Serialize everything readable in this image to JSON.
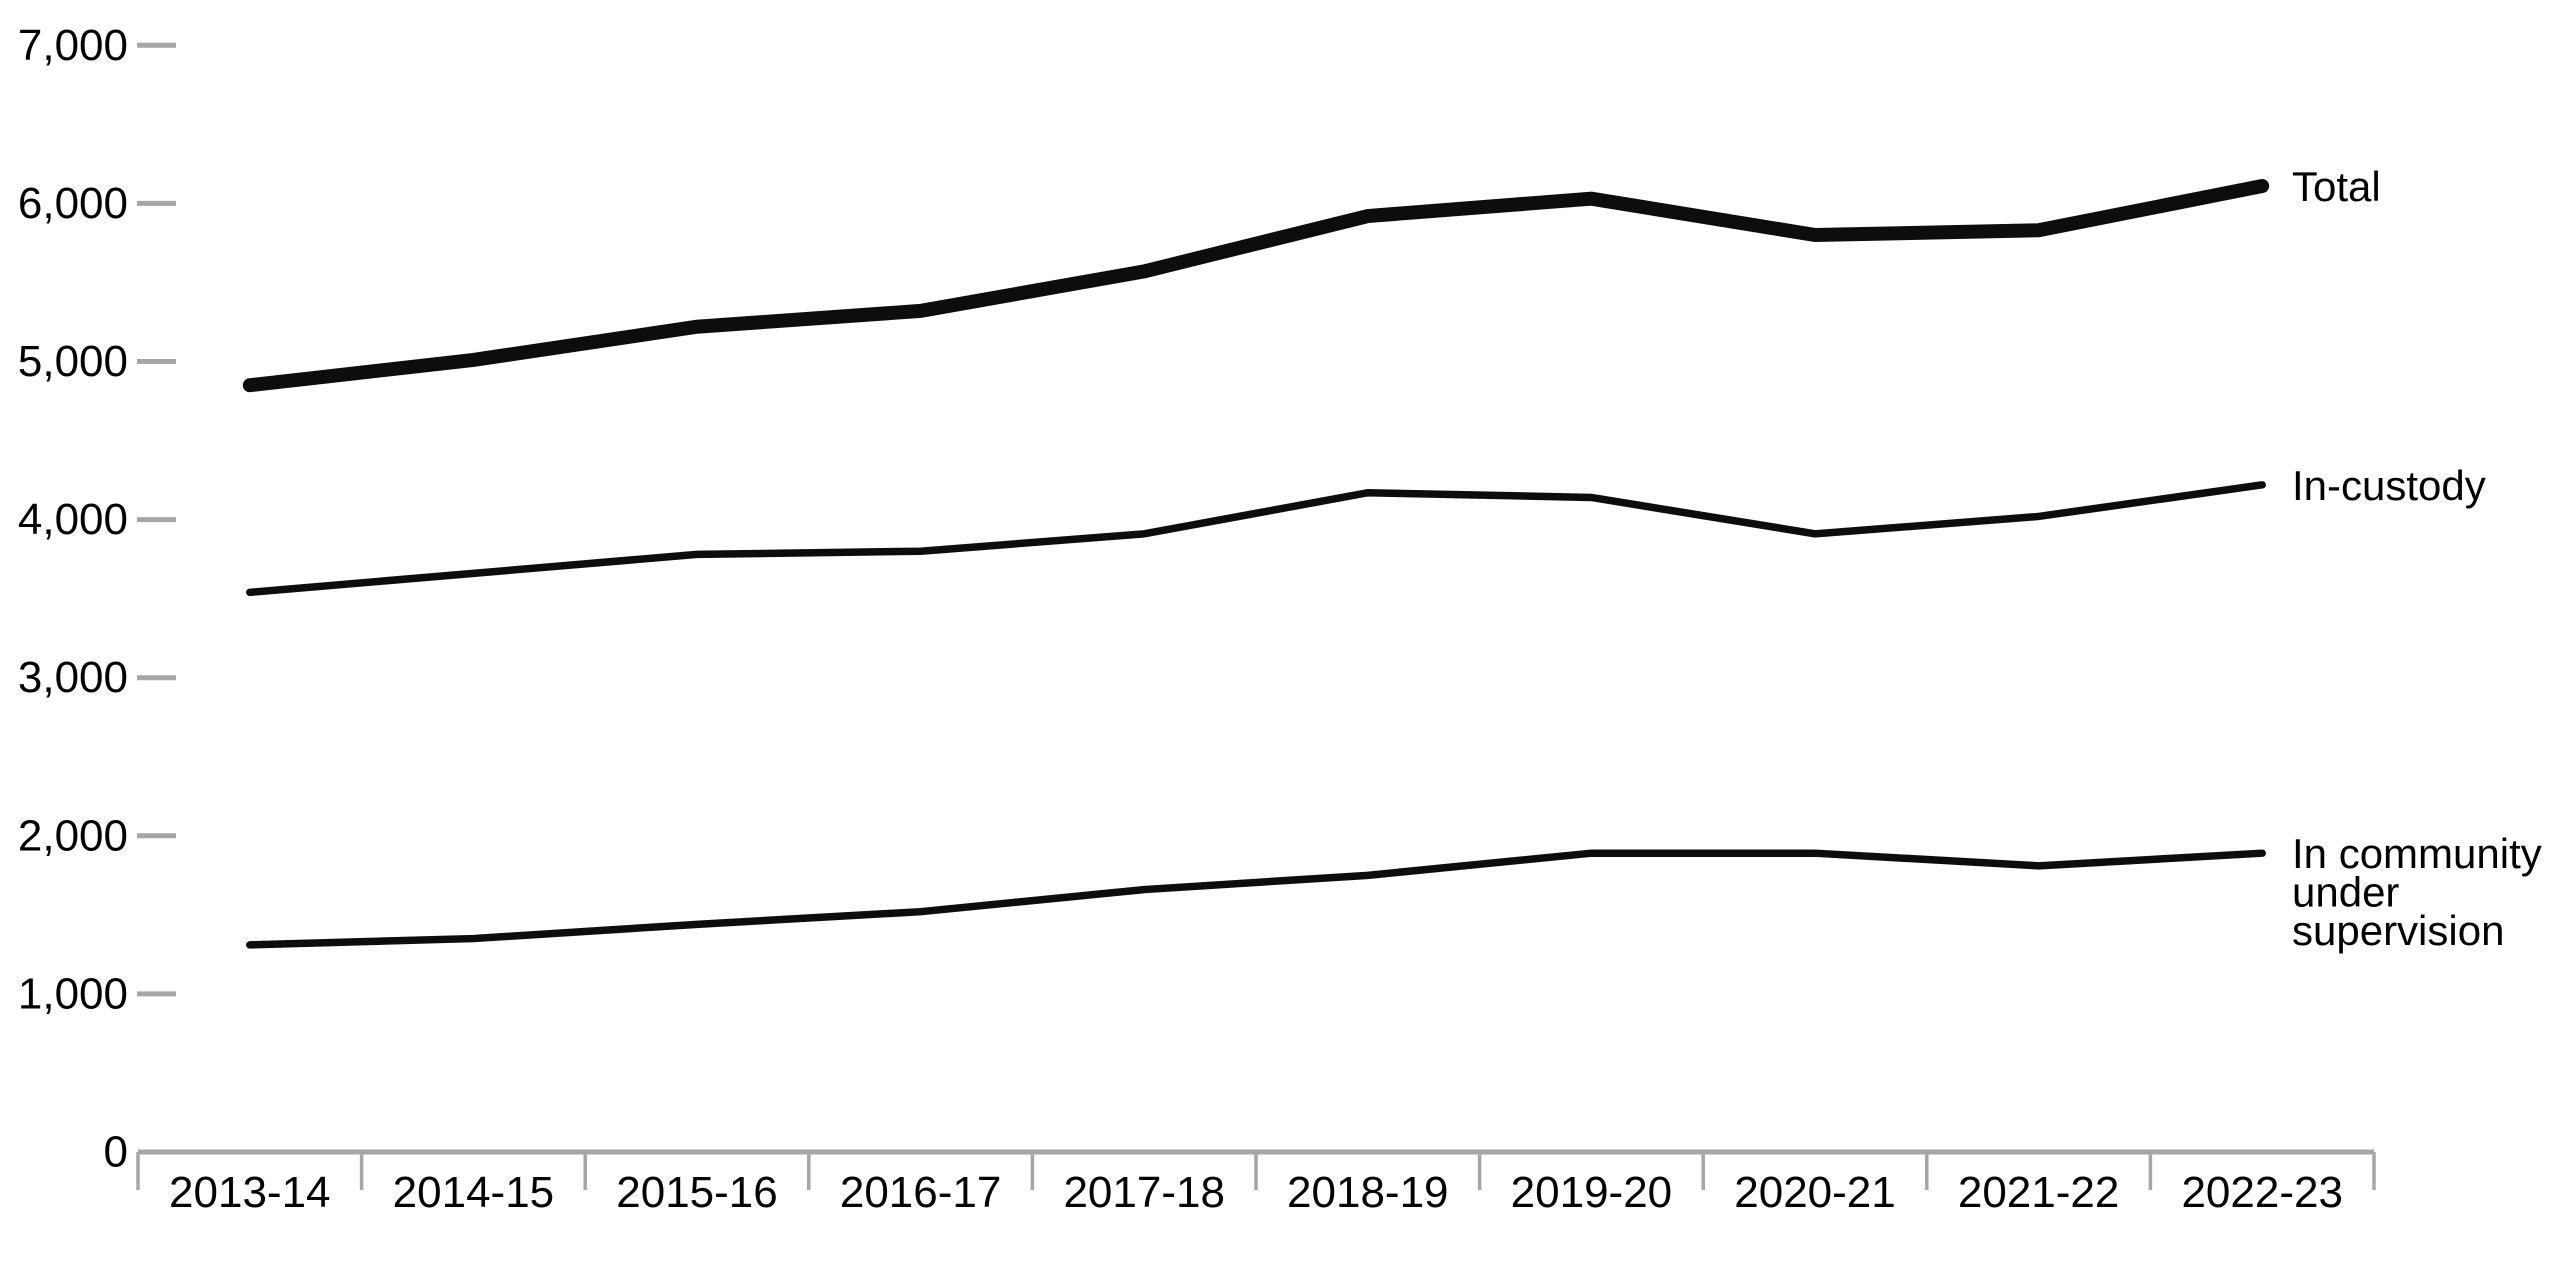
{
  "chart_data": {
    "type": "line",
    "title": "",
    "categories": [
      "2013-14",
      "2014-15",
      "2015-16",
      "2016-17",
      "2017-18",
      "2018-19",
      "2019-20",
      "2020-21",
      "2021-22",
      "2022-23"
    ],
    "series": [
      {
        "name": "Total",
        "label_lines": [
          "Total"
        ],
        "values": [
          4850,
          5010,
          5220,
          5320,
          5570,
          5920,
          6030,
          5800,
          5830,
          6110
        ],
        "stroke_width": 14
      },
      {
        "name": "In-custody",
        "label_lines": [
          "In-custody"
        ],
        "values": [
          3540,
          3660,
          3780,
          3800,
          3910,
          4170,
          4140,
          3910,
          4020,
          4220
        ],
        "stroke_width": 7.5
      },
      {
        "name": "In community under supervision",
        "label_lines": [
          "In community",
          "under",
          "supervision"
        ],
        "values": [
          1310,
          1350,
          1440,
          1520,
          1660,
          1750,
          1890,
          1890,
          1810,
          1890
        ],
        "stroke_width": 7.5
      }
    ],
    "xlabel": "",
    "ylabel": "",
    "y_axis": {
      "min": 0,
      "max": 7000,
      "tick_interval": 1000,
      "tick_labels": [
        "0",
        "1,000",
        "2,000",
        "3,000",
        "4,000",
        "5,000",
        "6,000",
        "7,000"
      ]
    },
    "grid": false,
    "legend_position": "right-of-line-ends",
    "colors": {
      "line": "#0d0d0d",
      "axis": "#a6a6a6",
      "text": "#000000"
    }
  }
}
